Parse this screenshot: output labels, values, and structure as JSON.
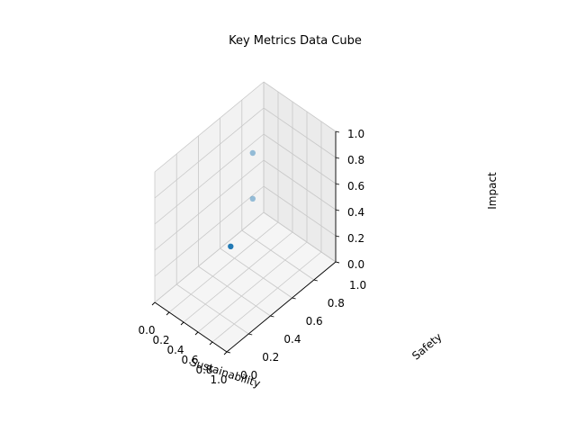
{
  "chart_data": {
    "type": "scatter",
    "projection": "3d",
    "title": "Key Metrics Data Cube",
    "xlabel": "Sustainability",
    "ylabel": "Safety",
    "zlabel": "Impact",
    "xlim": [
      0,
      1
    ],
    "ylim": [
      0,
      1
    ],
    "zlim": [
      0,
      1
    ],
    "x_ticks": [
      "0.0",
      "0.2",
      "0.4",
      "0.6",
      "0.8",
      "1.0"
    ],
    "y_ticks": [
      "0.0",
      "0.2",
      "0.4",
      "0.6",
      "0.8",
      "1.0"
    ],
    "z_ticks": [
      "0.0",
      "0.2",
      "0.4",
      "0.6",
      "0.8",
      "1.0"
    ],
    "grid": true,
    "points": [
      {
        "x": 0.15,
        "y": 0.8,
        "z": 0.65
      },
      {
        "x": 0.15,
        "y": 0.8,
        "z": 0.3
      },
      {
        "x": 0.6,
        "y": 0.3,
        "z": 0.45
      }
    ],
    "colors": {
      "point": "#1f77b4",
      "pane_left": "#f2f2f2",
      "pane_back": "#ebebeb",
      "pane_floor": "#f5f5f5",
      "grid": "#c8c8c8",
      "axis": "#000000"
    }
  }
}
